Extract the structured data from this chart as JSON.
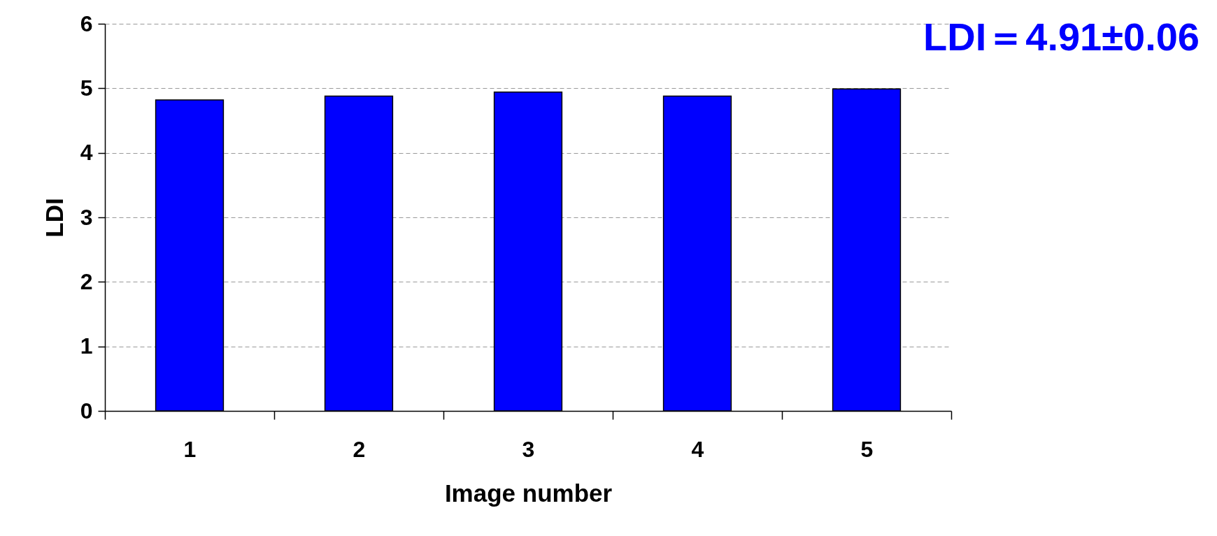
{
  "chart_data": {
    "type": "bar",
    "title": "LDI＝4.91±0.06",
    "xlabel": "Image number",
    "ylabel": "LDI",
    "categories": [
      "1",
      "2",
      "3",
      "4",
      "5"
    ],
    "values": [
      4.82,
      4.88,
      4.94,
      4.88,
      4.99
    ],
    "color": "#0000ff",
    "ylim": [
      0,
      6
    ],
    "yticks": [
      0,
      1,
      2,
      3,
      4,
      5,
      6
    ],
    "grid": "y"
  }
}
